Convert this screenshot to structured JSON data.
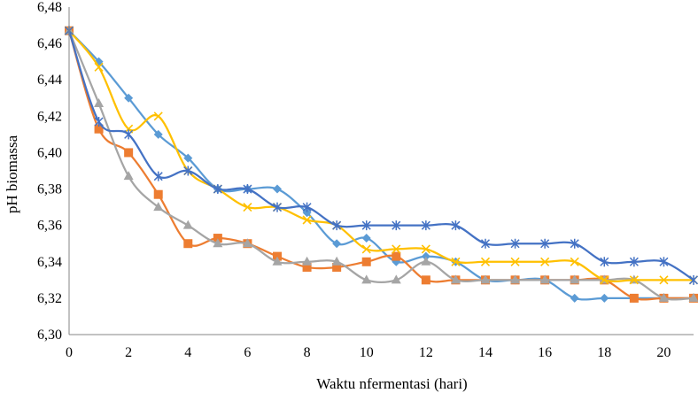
{
  "chart_data": {
    "type": "line",
    "xlabel": "Waktu nfermentasi (hari)",
    "ylabel": "pH biomassa",
    "xlim": [
      0,
      21
    ],
    "ylim": [
      6.3,
      6.48
    ],
    "x_ticks": [
      "0",
      "2",
      "4",
      "6",
      "8",
      "10",
      "12",
      "14",
      "16",
      "18",
      "20"
    ],
    "y_ticks": [
      "6,30",
      "6,32",
      "6,34",
      "6,36",
      "6,38",
      "6,40",
      "6,42",
      "6,44",
      "6,46",
      "6,48"
    ],
    "grid": false,
    "legend": "none",
    "series": [
      {
        "color": "#5B9BD5",
        "marker": "diamond",
        "x": [
          0,
          1,
          2,
          3,
          4,
          5,
          6,
          7,
          8,
          9,
          10,
          11,
          12,
          13,
          14,
          15,
          16,
          17,
          18,
          19,
          20,
          21
        ],
        "y": [
          6.467,
          6.45,
          6.43,
          6.41,
          6.397,
          6.38,
          6.38,
          6.38,
          6.367,
          6.35,
          6.353,
          6.34,
          6.343,
          6.34,
          6.33,
          6.33,
          6.33,
          6.32,
          6.32,
          6.32,
          6.32,
          6.32
        ]
      },
      {
        "color": "#ED7D31",
        "marker": "square",
        "x": [
          0,
          1,
          2,
          3,
          4,
          5,
          6,
          7,
          8,
          9,
          10,
          11,
          12,
          13,
          14,
          15,
          16,
          17,
          18,
          19,
          20,
          21
        ],
        "y": [
          6.467,
          6.413,
          6.4,
          6.377,
          6.35,
          6.353,
          6.35,
          6.343,
          6.337,
          6.337,
          6.34,
          6.343,
          6.33,
          6.33,
          6.33,
          6.33,
          6.33,
          6.33,
          6.33,
          6.32,
          6.32,
          6.32
        ]
      },
      {
        "color": "#A5A5A5",
        "marker": "triangle",
        "x": [
          0,
          1,
          2,
          3,
          4,
          5,
          6,
          7,
          8,
          9,
          10,
          11,
          12,
          13,
          14,
          15,
          16,
          17,
          18,
          19,
          20,
          21
        ],
        "y": [
          6.467,
          6.427,
          6.387,
          6.37,
          6.36,
          6.35,
          6.35,
          6.34,
          6.34,
          6.34,
          6.33,
          6.33,
          6.34,
          6.33,
          6.33,
          6.33,
          6.33,
          6.33,
          6.33,
          6.33,
          6.32,
          6.32
        ]
      },
      {
        "color": "#FFC000",
        "marker": "x",
        "x": [
          0,
          1,
          2,
          3,
          4,
          5,
          6,
          7,
          8,
          9,
          10,
          11,
          12,
          13,
          14,
          15,
          16,
          17,
          18,
          19,
          20,
          21
        ],
        "y": [
          6.467,
          6.447,
          6.413,
          6.42,
          6.39,
          6.38,
          6.37,
          6.37,
          6.363,
          6.36,
          6.347,
          6.347,
          6.347,
          6.34,
          6.34,
          6.34,
          6.34,
          6.34,
          6.33,
          6.33,
          6.33,
          6.33
        ]
      },
      {
        "color": "#4472C4",
        "marker": "star",
        "x": [
          0,
          1,
          2,
          3,
          4,
          5,
          6,
          7,
          8,
          9,
          10,
          11,
          12,
          13,
          14,
          15,
          16,
          17,
          18,
          19,
          20,
          21
        ],
        "y": [
          6.467,
          6.417,
          6.41,
          6.387,
          6.39,
          6.38,
          6.38,
          6.37,
          6.37,
          6.36,
          6.36,
          6.36,
          6.36,
          6.36,
          6.35,
          6.35,
          6.35,
          6.35,
          6.34,
          6.34,
          6.34,
          6.33
        ]
      }
    ]
  }
}
